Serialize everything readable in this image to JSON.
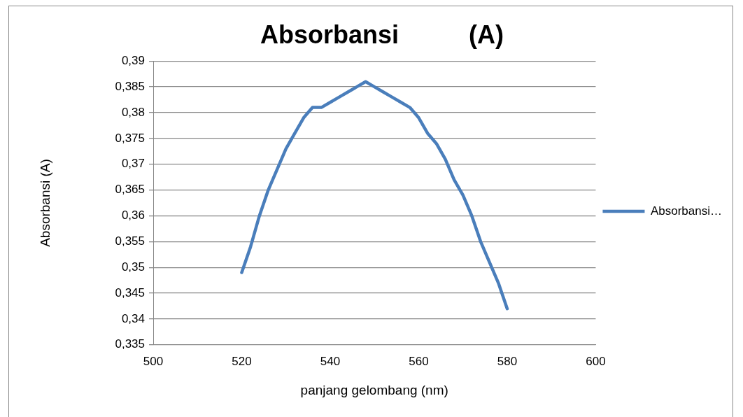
{
  "chart_data": {
    "type": "line",
    "title": "Absorbansi          (A)",
    "xlabel": "panjang gelombang (nm)",
    "ylabel": "Absorbansi (A)",
    "x": [
      520,
      522,
      524,
      526,
      528,
      530,
      532,
      534,
      536,
      538,
      540,
      542,
      544,
      546,
      548,
      550,
      552,
      554,
      556,
      558,
      560,
      562,
      564,
      566,
      568,
      570,
      572,
      574,
      576,
      578,
      580
    ],
    "series": [
      {
        "name": "Absorbansi…",
        "color": "#4a7ebb",
        "values": [
          0.349,
          0.354,
          0.36,
          0.365,
          0.369,
          0.373,
          0.376,
          0.379,
          0.381,
          0.381,
          0.382,
          0.383,
          0.384,
          0.385,
          0.386,
          0.385,
          0.384,
          0.383,
          0.382,
          0.381,
          0.379,
          0.376,
          0.374,
          0.371,
          0.367,
          0.364,
          0.36,
          0.355,
          0.351,
          0.347,
          0.342
        ]
      }
    ],
    "xlim": [
      500,
      600
    ],
    "xticks": [
      500,
      520,
      540,
      560,
      580,
      600
    ],
    "ylim": [
      0.335,
      0.39
    ],
    "yticks": [
      {
        "value": 0.335,
        "label": "0,335"
      },
      {
        "value": 0.34,
        "label": "0,34"
      },
      {
        "value": 0.345,
        "label": "0,345"
      },
      {
        "value": 0.35,
        "label": "0,35"
      },
      {
        "value": 0.355,
        "label": "0,355"
      },
      {
        "value": 0.36,
        "label": "0,36"
      },
      {
        "value": 0.365,
        "label": "0,365"
      },
      {
        "value": 0.37,
        "label": "0,37"
      },
      {
        "value": 0.375,
        "label": "0,375"
      },
      {
        "value": 0.38,
        "label": "0,38"
      },
      {
        "value": 0.385,
        "label": "0,385"
      },
      {
        "value": 0.39,
        "label": "0,39"
      }
    ],
    "grid": "y",
    "legend": "right",
    "marker": "none",
    "line_style": "solid"
  }
}
